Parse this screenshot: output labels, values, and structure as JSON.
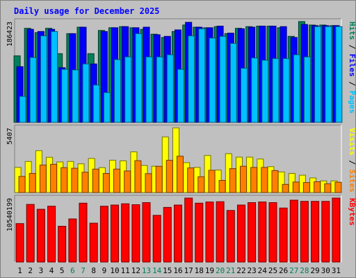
{
  "chart_data": {
    "type": "bar",
    "title": "Daily usage for December 2025",
    "categories": [
      "1",
      "2",
      "3",
      "4",
      "5",
      "6",
      "7",
      "8",
      "9",
      "10",
      "11",
      "12",
      "13",
      "14",
      "15",
      "16",
      "17",
      "18",
      "19",
      "20",
      "21",
      "22",
      "23",
      "24",
      "25",
      "26",
      "27",
      "28",
      "29",
      "30",
      "31"
    ],
    "weekend_days": [
      6,
      7,
      13,
      14,
      20,
      21,
      27,
      28
    ],
    "panels": [
      {
        "id": "hits",
        "max_label": "186423",
        "max": 186423,
        "side_label": [
          "Hits",
          "Files",
          "Pages"
        ],
        "series": [
          {
            "name": "Hits",
            "color": "#00805c",
            "values": [
              123000,
              174000,
              166000,
              174000,
              127000,
              164000,
              176000,
              127000,
              170000,
              175000,
              177000,
              175000,
              172000,
              163000,
              157000,
              168000,
              180000,
              176000,
              175000,
              177000,
              164000,
              174000,
              177000,
              178000,
              178000,
              175000,
              159000,
              186423,
              180000,
              180000,
              179000
            ]
          },
          {
            "name": "Files",
            "color": "#0000ff",
            "values": [
              103000,
              172000,
              168000,
              172000,
              101000,
              164000,
              176000,
              108000,
              168000,
              175000,
              177000,
              175000,
              176000,
              162000,
              159000,
              171000,
              185000,
              176000,
              175000,
              178000,
              165000,
              173000,
              176000,
              178000,
              178000,
              177000,
              157000,
              181000,
              179000,
              179000,
              179000
            ]
          },
          {
            "name": "Pages",
            "color": "#00c0ff",
            "values": [
              48000,
              120000,
              160000,
              168000,
              98000,
              97000,
              108000,
              69000,
              55000,
              116000,
              121000,
              164000,
              121000,
              121000,
              125000,
              98000,
              160000,
              173000,
              156000,
              159000,
              146000,
              100000,
              119000,
              115000,
              118000,
              118000,
              125000,
              121000,
              177000,
              177000,
              177000
            ]
          }
        ]
      },
      {
        "id": "visits",
        "max_label": "5407",
        "max": 5407,
        "side_label": [
          "Visits",
          "Sites"
        ],
        "series": [
          {
            "name": "Visits",
            "color": "#ffff00",
            "values": [
              2100,
              2600,
              3500,
              2950,
              2560,
              2600,
              2400,
              2850,
              2080,
              2700,
              2650,
              3400,
              2260,
              2200,
              4650,
              5407,
              2500,
              2100,
              3100,
              1880,
              3250,
              2960,
              2960,
              2800,
              2160,
              1720,
              1600,
              1450,
              1220,
              970,
              970
            ]
          },
          {
            "name": "Sites",
            "color": "#ff8000",
            "values": [
              1350,
              1600,
              2300,
              2360,
              2080,
              2030,
              1700,
              1960,
              1600,
              1960,
              1800,
              2660,
              1580,
              2190,
              2700,
              3040,
              2060,
              1320,
              1860,
              1020,
              2000,
              2200,
              2100,
              2100,
              1840,
              680,
              880,
              840,
              900,
              730,
              860
            ]
          }
        ]
      },
      {
        "id": "kbytes",
        "max_label": "10540199",
        "max": 10540199,
        "side_label": [
          "KBytes"
        ],
        "series": [
          {
            "name": "KBytes",
            "color": "#ff0000",
            "values": [
              6330000,
              9500000,
              8700000,
              9200000,
              5900000,
              7100000,
              9700000,
              6400000,
              9200000,
              9400000,
              9600000,
              9450000,
              9800000,
              7700000,
              9000000,
              9400000,
              10540199,
              9700000,
              9900000,
              9950000,
              8500000,
              9400000,
              9800000,
              9900000,
              9800000,
              8900000,
              10200000,
              10000000,
              10000000,
              10000000,
              10540199
            ]
          }
        ]
      }
    ]
  }
}
